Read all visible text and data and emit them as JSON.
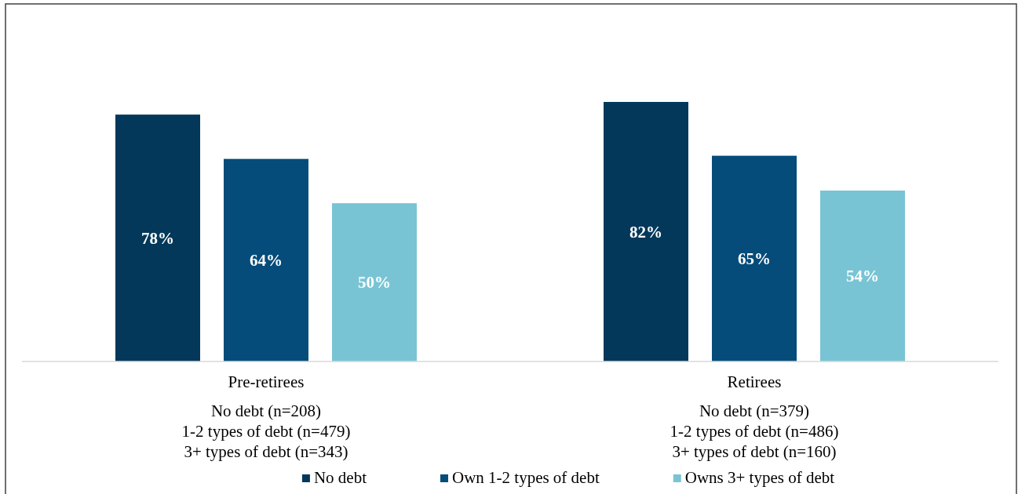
{
  "chart_data": {
    "type": "bar",
    "categories": [
      "Pre-retirees\nNo debt (n=208)\n1-2 types of debt (n=479)\n3+ types of debt (n=343)",
      "Retirees\nNo debt (n=379)\n1-2 types of debt (n=486)\n3+ types of debt (n=160)"
    ],
    "series": [
      {
        "name": "No debt",
        "color": "#03385a",
        "values": [
          78,
          82
        ],
        "value_labels": [
          "78%",
          "82%"
        ]
      },
      {
        "name": "Own 1-2 types of debt",
        "color": "#054c7a",
        "values": [
          64,
          65
        ],
        "value_labels": [
          "64%",
          "65%"
        ]
      },
      {
        "name": "Owns 3+ types of debt",
        "color": "#79c4d4",
        "values": [
          50,
          54
        ],
        "value_labels": [
          "50%",
          "54%"
        ]
      }
    ],
    "legend": "bottom"
  }
}
